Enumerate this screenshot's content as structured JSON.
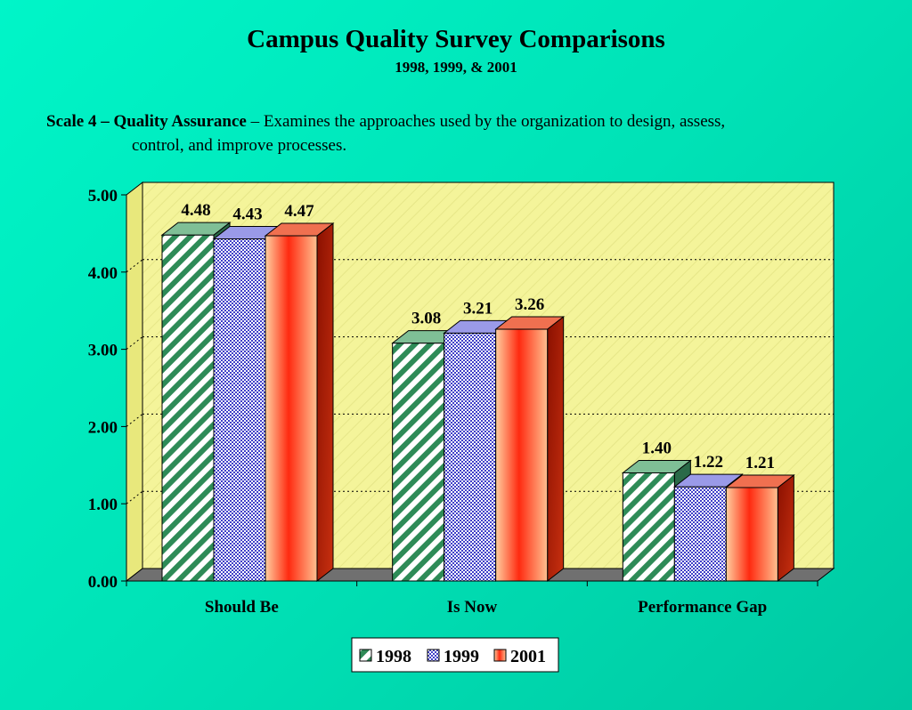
{
  "header": {
    "title": "Campus Quality Survey Comparisons",
    "subtitle": "1998, 1999, & 2001"
  },
  "description": {
    "heading": "Scale 4 – Quality Assurance",
    "text_line1": " – Examines the approaches used by the organization to design, assess,",
    "text_line2": "control, and improve processes."
  },
  "colors": {
    "wall": "#f4f49a",
    "floor": "#707070",
    "series_1998": "#2e8b57",
    "series_1999": "#4040c8",
    "series_2001": "#e02810"
  },
  "chart_data": {
    "type": "bar",
    "categories": [
      "Should Be",
      "Is Now",
      "Performance Gap"
    ],
    "series": [
      {
        "name": "1998",
        "values": [
          4.48,
          3.08,
          1.4
        ],
        "labels": [
          "4.48",
          "3.08",
          "1.40"
        ]
      },
      {
        "name": "1999",
        "values": [
          4.43,
          3.21,
          1.22
        ],
        "labels": [
          "4.43",
          "3.21",
          "1.22"
        ]
      },
      {
        "name": "2001",
        "values": [
          4.47,
          3.26,
          1.21
        ],
        "labels": [
          "4.47",
          "3.26",
          "1.21"
        ]
      }
    ],
    "yticks": [
      "0.00",
      "1.00",
      "2.00",
      "3.00",
      "4.00",
      "5.00"
    ],
    "ylim": [
      0,
      5
    ],
    "grid": true,
    "legend": "bottom-center",
    "style": "3d-clustered"
  }
}
